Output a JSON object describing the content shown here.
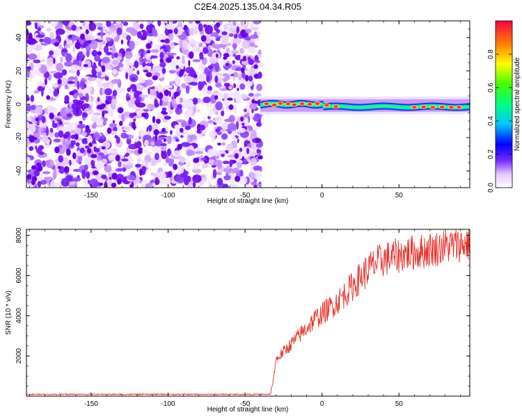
{
  "title": "C2E4.2025.135.04.34.R05",
  "chart_data": [
    {
      "type": "heatmap",
      "xlabel": "Height of straight line (km)",
      "ylabel": "Frequency (Hz)",
      "xlim": [
        -192,
        96
      ],
      "ylim": [
        -50,
        50
      ],
      "xticks": [
        "-150",
        "-100",
        "-50",
        "0",
        "50"
      ],
      "yticks": [
        "-40",
        "-20",
        "0",
        "20",
        "40"
      ],
      "colorbar": {
        "label": "Normalized spectral amplitude",
        "ticks": [
          "0.0",
          "0.2",
          "0.4",
          "0.6",
          "0.8"
        ],
        "range": [
          0,
          1
        ],
        "palette": "rainbow (purple to red)"
      },
      "regions": {
        "noise": {
          "x": [
            -192,
            -40
          ],
          "y": [
            -50,
            50
          ],
          "level": "low (0.0-0.2)"
        },
        "signal_line": {
          "x": [
            -40,
            96
          ],
          "center_freq_hz": [
            0,
            -2
          ],
          "level": "high (0.6-1.0)"
        }
      }
    },
    {
      "type": "line",
      "xlabel": "Height of straight line (km)",
      "ylabel": "SNR (10 * v/v)",
      "xlim": [
        -192,
        96
      ],
      "ylim": [
        0,
        8300
      ],
      "xticks": [
        "-150",
        "-100",
        "-50",
        "0",
        "50"
      ],
      "yticks": [
        "2000",
        "4000",
        "6000",
        "8000"
      ],
      "series": [
        {
          "color": "#e8312a",
          "x": [
            -192,
            -150,
            -100,
            -50,
            -35,
            -32,
            -30,
            -25,
            -20,
            -15,
            -10,
            -5,
            0,
            5,
            10,
            15,
            20,
            25,
            30,
            35,
            40,
            45,
            50,
            55,
            60,
            65,
            70,
            75,
            80,
            85,
            90,
            96
          ],
          "y": [
            100,
            100,
            100,
            100,
            100,
            600,
            1800,
            2200,
            2600,
            3000,
            3400,
            3800,
            4100,
            4400,
            4700,
            5100,
            5500,
            5900,
            6300,
            6600,
            6800,
            6900,
            7000,
            7100,
            7150,
            7200,
            7300,
            7350,
            7450,
            7500,
            7550,
            7600
          ]
        }
      ]
    }
  ]
}
